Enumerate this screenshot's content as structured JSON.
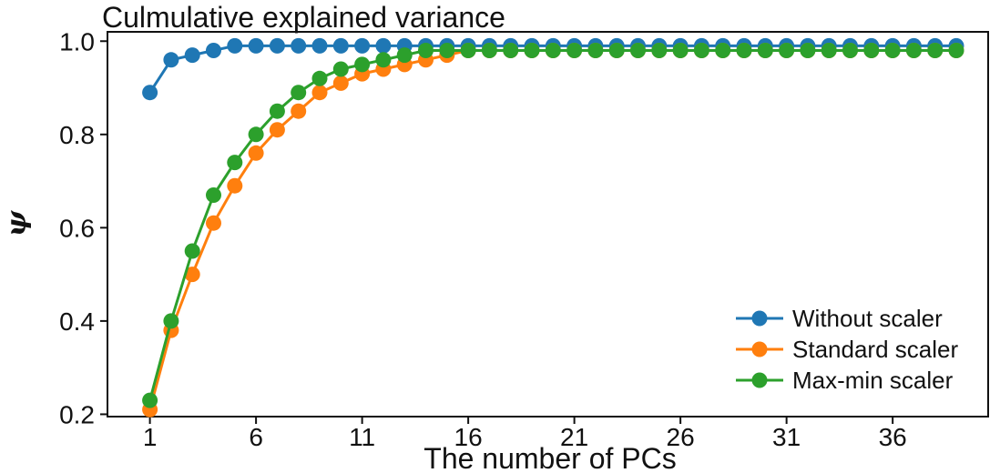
{
  "chart_data": {
    "type": "line",
    "title": "Culmulative explained variance",
    "xlabel": "The number of PCs",
    "ylabel": "ψ",
    "xlim": [
      -1,
      40.5
    ],
    "ylim": [
      0.195,
      1.02
    ],
    "xticks": [
      1,
      6,
      11,
      16,
      21,
      26,
      31,
      36
    ],
    "xtick_labels": [
      "1",
      "6",
      "11",
      "16",
      "21",
      "26",
      "31",
      "36"
    ],
    "yticks": [
      0.2,
      0.4,
      0.6,
      0.8,
      1.0
    ],
    "ytick_labels": [
      "0.2",
      "0.4",
      "0.6",
      "0.8",
      "1.0"
    ],
    "grid": false,
    "legend_position": "bottom-right",
    "x": [
      1,
      2,
      3,
      4,
      5,
      6,
      7,
      8,
      9,
      10,
      11,
      12,
      13,
      14,
      15,
      16,
      17,
      18,
      19,
      20,
      21,
      22,
      23,
      24,
      25,
      26,
      27,
      28,
      29,
      30,
      31,
      32,
      33,
      34,
      35,
      36,
      37,
      38,
      39
    ],
    "series": [
      {
        "name": "Without scaler",
        "color": "#1f77b4",
        "values": [
          0.89,
          0.96,
          0.97,
          0.98,
          0.99,
          0.99,
          0.99,
          0.99,
          0.99,
          0.99,
          0.99,
          0.99,
          0.99,
          0.99,
          0.99,
          0.99,
          0.99,
          0.99,
          0.99,
          0.99,
          0.99,
          0.99,
          0.99,
          0.99,
          0.99,
          0.99,
          0.99,
          0.99,
          0.99,
          0.99,
          0.99,
          0.99,
          0.99,
          0.99,
          0.99,
          0.99,
          0.99,
          0.99,
          0.99
        ]
      },
      {
        "name": "Standard scaler",
        "color": "#ff7f0e",
        "values": [
          0.21,
          0.38,
          0.5,
          0.61,
          0.69,
          0.76,
          0.81,
          0.85,
          0.89,
          0.91,
          0.93,
          0.94,
          0.95,
          0.96,
          0.97,
          0.98,
          0.98,
          0.98,
          0.98,
          0.98,
          0.98,
          0.98,
          0.98,
          0.98,
          0.98,
          0.98,
          0.98,
          0.98,
          0.98,
          0.98,
          0.98,
          0.98,
          0.98,
          0.98,
          0.98,
          0.98,
          0.98,
          0.98,
          0.98
        ]
      },
      {
        "name": "Max-min scaler",
        "color": "#2ca02c",
        "values": [
          0.23,
          0.4,
          0.55,
          0.67,
          0.74,
          0.8,
          0.85,
          0.89,
          0.92,
          0.94,
          0.95,
          0.96,
          0.97,
          0.98,
          0.98,
          0.98,
          0.98,
          0.98,
          0.98,
          0.98,
          0.98,
          0.98,
          0.98,
          0.98,
          0.98,
          0.98,
          0.98,
          0.98,
          0.98,
          0.98,
          0.98,
          0.98,
          0.98,
          0.98,
          0.98,
          0.98,
          0.98,
          0.98,
          0.98
        ]
      }
    ]
  }
}
